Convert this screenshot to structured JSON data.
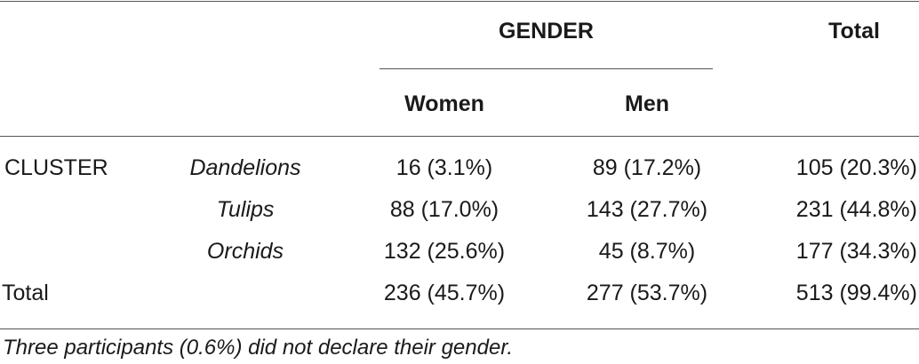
{
  "header": {
    "group_label": "GENDER",
    "total_label": "Total",
    "women_label": "Women",
    "men_label": "Men"
  },
  "rows": [
    {
      "row_label": "CLUSTER",
      "cluster": "Dandelions",
      "women": "16 (3.1%)",
      "men": "89 (17.2%)",
      "total": "105 (20.3%)"
    },
    {
      "row_label": "",
      "cluster": "Tulips",
      "women": "88 (17.0%)",
      "men": "143 (27.7%)",
      "total": "231 (44.8%)"
    },
    {
      "row_label": "",
      "cluster": "Orchids",
      "women": "132 (25.6%)",
      "men": "45 (8.7%)",
      "total": "177 (34.3%)"
    },
    {
      "row_label": "Total",
      "cluster": "",
      "women": "236 (45.7%)",
      "men": "277 (53.7%)",
      "total": "513 (99.4%)"
    }
  ],
  "footnote": "Three participants (0.6%) did not declare their gender."
}
